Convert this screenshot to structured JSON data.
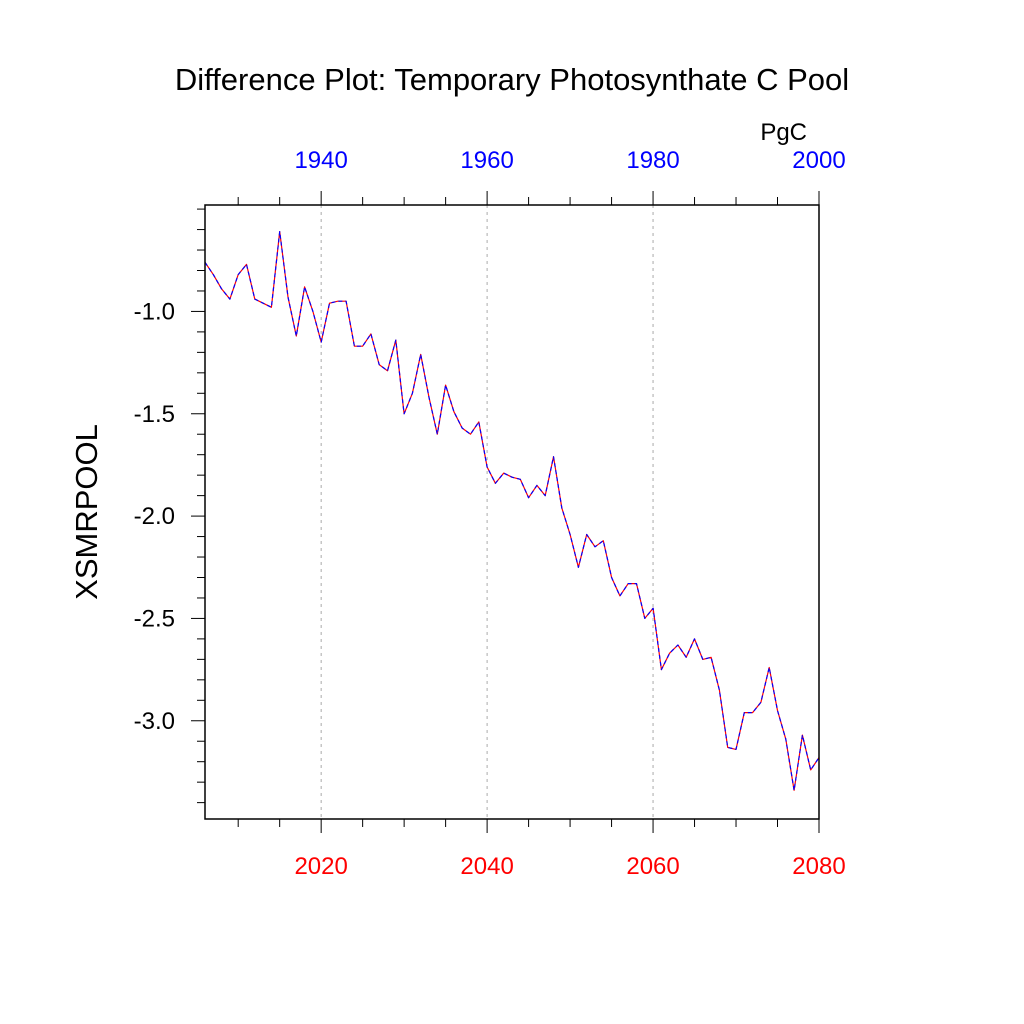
{
  "chart_data": {
    "type": "line",
    "title": "Difference Plot: Temporary Photosynthate C Pool",
    "units": "PgC",
    "ylabel": "XSMRPOOL",
    "xlabel": "",
    "grid": "vertical dashed lines at bottom-axis major ticks",
    "x_bottom": {
      "range": [
        2006,
        2080
      ],
      "major_ticks": [
        2020,
        2040,
        2060,
        2080
      ],
      "minor_tick_step": 5,
      "color": "#ff0000"
    },
    "x_top": {
      "range": [
        1926,
        2000
      ],
      "major_ticks": [
        1940,
        1960,
        1980,
        2000
      ],
      "minor_tick_step": 5,
      "color": "#0000ff"
    },
    "y": {
      "range": [
        -3.48,
        -0.48
      ],
      "major_ticks": [
        -3.0,
        -2.5,
        -2.0,
        -1.5,
        -1.0
      ],
      "tick_labels": [
        "-3.0",
        "-2.5",
        "-2.0",
        "-1.5",
        "-1.0"
      ],
      "minor_tick_step": 0.1
    },
    "x": [
      2006,
      2007,
      2008,
      2009,
      2010,
      2011,
      2012,
      2013,
      2014,
      2015,
      2016,
      2017,
      2018,
      2019,
      2020,
      2021,
      2022,
      2023,
      2024,
      2025,
      2026,
      2027,
      2028,
      2029,
      2030,
      2031,
      2032,
      2033,
      2034,
      2035,
      2036,
      2037,
      2038,
      2039,
      2040,
      2041,
      2042,
      2043,
      2044,
      2045,
      2046,
      2047,
      2048,
      2049,
      2050,
      2051,
      2052,
      2053,
      2054,
      2055,
      2056,
      2057,
      2058,
      2059,
      2060,
      2061,
      2062,
      2063,
      2064,
      2065,
      2066,
      2067,
      2068,
      2069,
      2070,
      2071,
      2072,
      2073,
      2074,
      2075,
      2076,
      2077,
      2078,
      2079,
      2080
    ],
    "series": [
      {
        "values": [
          -0.76,
          -0.82,
          -0.89,
          -0.94,
          -0.82,
          -0.77,
          -0.94,
          -0.96,
          -0.98,
          -0.61,
          -0.93,
          -1.12,
          -0.88,
          -1.0,
          -1.15,
          -0.96,
          -0.95,
          -0.95,
          -1.17,
          -1.17,
          -1.11,
          -1.26,
          -1.29,
          -1.14,
          -1.5,
          -1.4,
          -1.21,
          -1.42,
          -1.6,
          -1.36,
          -1.49,
          -1.57,
          -1.6,
          -1.54,
          -1.76,
          -1.84,
          -1.79,
          -1.81,
          -1.82,
          -1.91,
          -1.85,
          -1.9,
          -1.71,
          -1.96,
          -2.09,
          -2.25,
          -2.09,
          -2.15,
          -2.12,
          -2.3,
          -2.39,
          -2.33,
          -2.33,
          -2.5,
          -2.45,
          -2.75,
          -2.67,
          -2.63,
          -2.69,
          -2.6,
          -2.7,
          -2.69,
          -2.85,
          -3.13,
          -3.14,
          -2.96,
          -2.96,
          -2.91,
          -2.74,
          -2.95,
          -3.09,
          -3.34,
          -3.07,
          -3.24,
          -3.18
        ],
        "color": "#ff0000",
        "overlay_color": "#0000ff",
        "style": "red solid line overlaid by blue dashed line"
      }
    ]
  }
}
